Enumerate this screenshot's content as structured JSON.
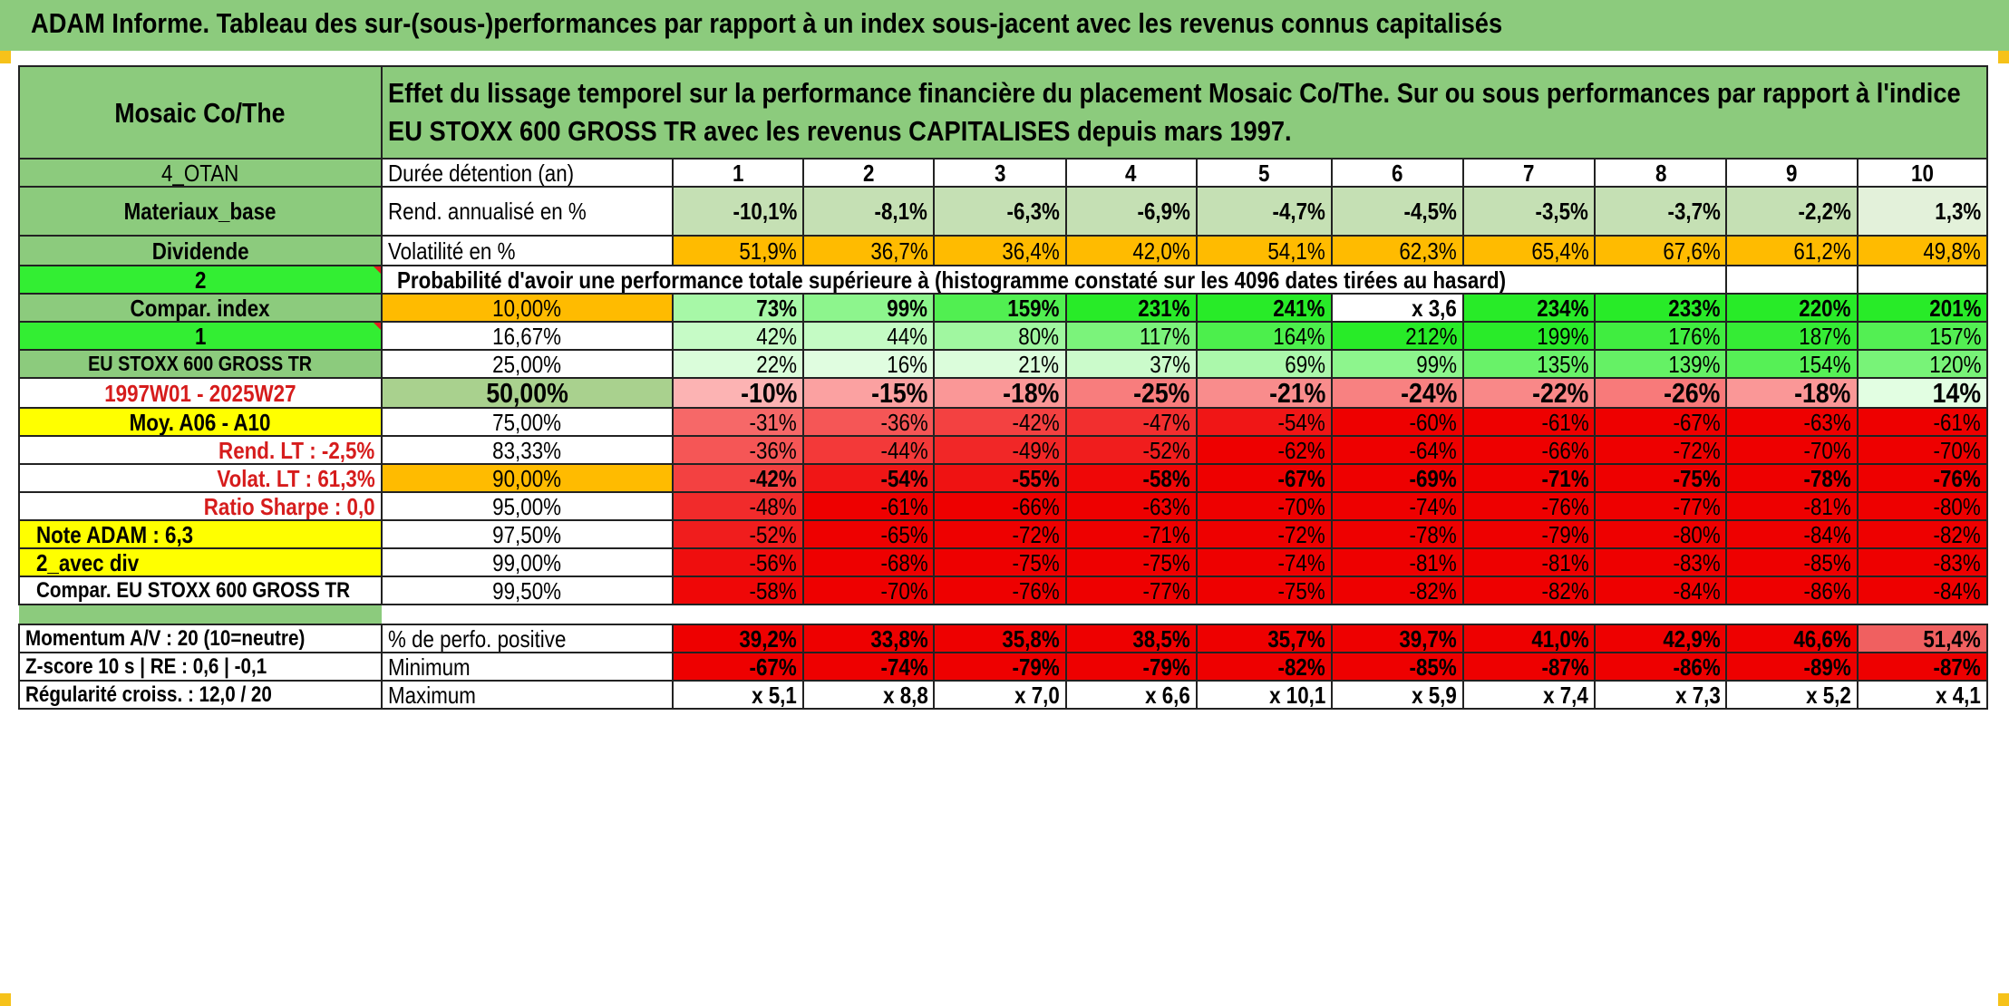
{
  "title": "ADAM Informe. Tableau des sur-(sous-)performances par rapport à un index sous-jacent avec les revenus connus capitalisés",
  "fund_name": "Mosaic Co/The",
  "description": "Effet du lissage temporel sur la performance financière du placement Mosaic Co/The. Sur ou sous performances par rapport à l'indice EU STOXX 600 GROSS TR avec les revenus CAPITALISES depuis mars 1997.",
  "left_labels": {
    "code": "4_OTAN",
    "sector": "Materiaux_base",
    "dividend": "Dividende",
    "dividend_value": "2",
    "compar_index": "Compar. index",
    "compar_index_value": "1",
    "index_name": "EU STOXX 600 GROSS TR",
    "period": "1997W01 - 2025W27",
    "moy": "Moy. A06 - A10",
    "rend_lt": "Rend. LT :    -2,5%",
    "volat_lt": "Volat. LT :   61,3%",
    "sharpe": "Ratio Sharpe :    0,0",
    "note": "Note ADAM : 6,3",
    "avec_div": "2_avec div",
    "compar_full": "Compar. EU STOXX 600 GROSS TR",
    "momentum": "Momentum A/V : 20 (10=neutre)",
    "zscore": "Z-score 10 s | RE : 0,6 | -0,1",
    "regularite": "Régularité croiss. : 12,0 / 20"
  },
  "row_labels": {
    "duree": "Durée détention (an)",
    "rend": "Rend. annualisé en %",
    "volat": "Volatilité en %",
    "proba": "Probabilité d'avoir une performance totale supérieure à (histogramme constaté sur les 4096 dates tirées au hasard)",
    "positive": "% de perfo. positive",
    "minimum": "Minimum",
    "maximum": "Maximum"
  },
  "years": [
    "1",
    "2",
    "3",
    "4",
    "5",
    "6",
    "7",
    "8",
    "9",
    "10"
  ],
  "rend": [
    "-10,1%",
    "-8,1%",
    "-6,3%",
    "-6,9%",
    "-4,7%",
    "-4,5%",
    "-3,5%",
    "-3,7%",
    "-2,2%",
    "1,3%"
  ],
  "volat": [
    "51,9%",
    "36,7%",
    "36,4%",
    "42,0%",
    "54,1%",
    "62,3%",
    "65,4%",
    "67,6%",
    "61,2%",
    "49,8%"
  ],
  "percentiles": [
    {
      "p": "10,00%",
      "vals": [
        "73%",
        "99%",
        "159%",
        "231%",
        "241%",
        "x 3,6",
        "234%",
        "233%",
        "220%",
        "201%"
      ]
    },
    {
      "p": "16,67%",
      "vals": [
        "42%",
        "44%",
        "80%",
        "117%",
        "164%",
        "212%",
        "199%",
        "176%",
        "187%",
        "157%"
      ]
    },
    {
      "p": "25,00%",
      "vals": [
        "22%",
        "16%",
        "21%",
        "37%",
        "69%",
        "99%",
        "135%",
        "139%",
        "154%",
        "120%"
      ]
    },
    {
      "p": "50,00%",
      "vals": [
        "-10%",
        "-15%",
        "-18%",
        "-25%",
        "-21%",
        "-24%",
        "-22%",
        "-26%",
        "-18%",
        "14%"
      ]
    },
    {
      "p": "75,00%",
      "vals": [
        "-31%",
        "-36%",
        "-42%",
        "-47%",
        "-54%",
        "-60%",
        "-61%",
        "-67%",
        "-63%",
        "-61%"
      ]
    },
    {
      "p": "83,33%",
      "vals": [
        "-36%",
        "-44%",
        "-49%",
        "-52%",
        "-62%",
        "-64%",
        "-66%",
        "-72%",
        "-70%",
        "-70%"
      ]
    },
    {
      "p": "90,00%",
      "vals": [
        "-42%",
        "-54%",
        "-55%",
        "-58%",
        "-67%",
        "-69%",
        "-71%",
        "-75%",
        "-78%",
        "-76%"
      ]
    },
    {
      "p": "95,00%",
      "vals": [
        "-48%",
        "-61%",
        "-66%",
        "-63%",
        "-70%",
        "-74%",
        "-76%",
        "-77%",
        "-81%",
        "-80%"
      ]
    },
    {
      "p": "97,50%",
      "vals": [
        "-52%",
        "-65%",
        "-72%",
        "-71%",
        "-72%",
        "-78%",
        "-79%",
        "-80%",
        "-84%",
        "-82%"
      ]
    },
    {
      "p": "99,00%",
      "vals": [
        "-56%",
        "-68%",
        "-75%",
        "-75%",
        "-74%",
        "-81%",
        "-81%",
        "-83%",
        "-85%",
        "-83%"
      ]
    },
    {
      "p": "99,50%",
      "vals": [
        "-58%",
        "-70%",
        "-76%",
        "-77%",
        "-75%",
        "-82%",
        "-82%",
        "-84%",
        "-86%",
        "-84%"
      ]
    }
  ],
  "positive": [
    "39,2%",
    "33,8%",
    "35,8%",
    "38,5%",
    "35,7%",
    "39,7%",
    "41,0%",
    "42,9%",
    "46,6%",
    "51,4%"
  ],
  "minimum": [
    "-67%",
    "-74%",
    "-79%",
    "-79%",
    "-82%",
    "-85%",
    "-87%",
    "-86%",
    "-89%",
    "-87%"
  ],
  "maximum": [
    "x 5,1",
    "x 8,8",
    "x 7,0",
    "x 6,6",
    "x 10,1",
    "x 5,9",
    "x 7,4",
    "x 7,3",
    "x 5,2",
    "x 4,1"
  ],
  "colors": {
    "header_green": "#8ccb7d",
    "bright_green": "#33ee33",
    "orange": "#ffbb00",
    "yellow": "#ffff00",
    "red": "#ee0000",
    "light_green": "#c5e0b4"
  }
}
